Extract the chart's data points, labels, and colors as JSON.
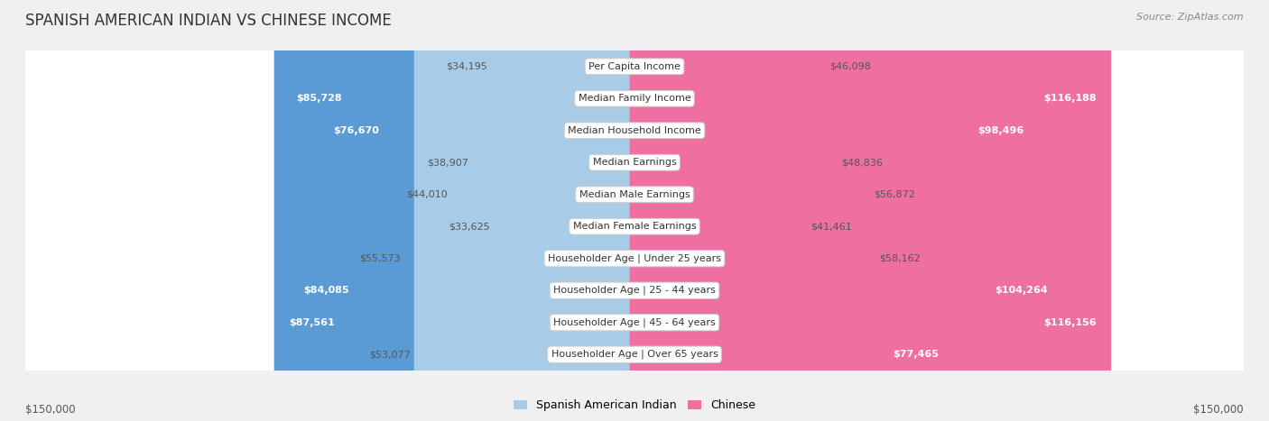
{
  "title": "SPANISH AMERICAN INDIAN VS CHINESE INCOME",
  "source": "Source: ZipAtlas.com",
  "categories": [
    "Per Capita Income",
    "Median Family Income",
    "Median Household Income",
    "Median Earnings",
    "Median Male Earnings",
    "Median Female Earnings",
    "Householder Age | Under 25 years",
    "Householder Age | 25 - 44 years",
    "Householder Age | 45 - 64 years",
    "Householder Age | Over 65 years"
  ],
  "left_values": [
    34195,
    85728,
    76670,
    38907,
    44010,
    33625,
    55573,
    84085,
    87561,
    53077
  ],
  "right_values": [
    46098,
    116188,
    98496,
    48836,
    56872,
    41461,
    58162,
    104264,
    116156,
    77465
  ],
  "left_labels": [
    "$34,195",
    "$85,728",
    "$76,670",
    "$38,907",
    "$44,010",
    "$33,625",
    "$55,573",
    "$84,085",
    "$87,561",
    "$53,077"
  ],
  "right_labels": [
    "$46,098",
    "$116,188",
    "$98,496",
    "$48,836",
    "$56,872",
    "$41,461",
    "$58,162",
    "$104,264",
    "$116,156",
    "$77,465"
  ],
  "left_color_light": "#A8CCE8",
  "left_color_dark": "#5B9BD5",
  "right_color_light": "#F4B8D0",
  "right_color_dark": "#EE6FA0",
  "inside_threshold": 60000,
  "max_value": 150000,
  "legend_left": "Spanish American Indian",
  "legend_right": "Chinese",
  "background_color": "#f0f0f0",
  "row_bg_color": "#ffffff",
  "row_alt_color": "#e8e8e8",
  "title_fontsize": 12,
  "label_fontsize": 8,
  "category_fontsize": 8,
  "axis_label": "$150,000"
}
